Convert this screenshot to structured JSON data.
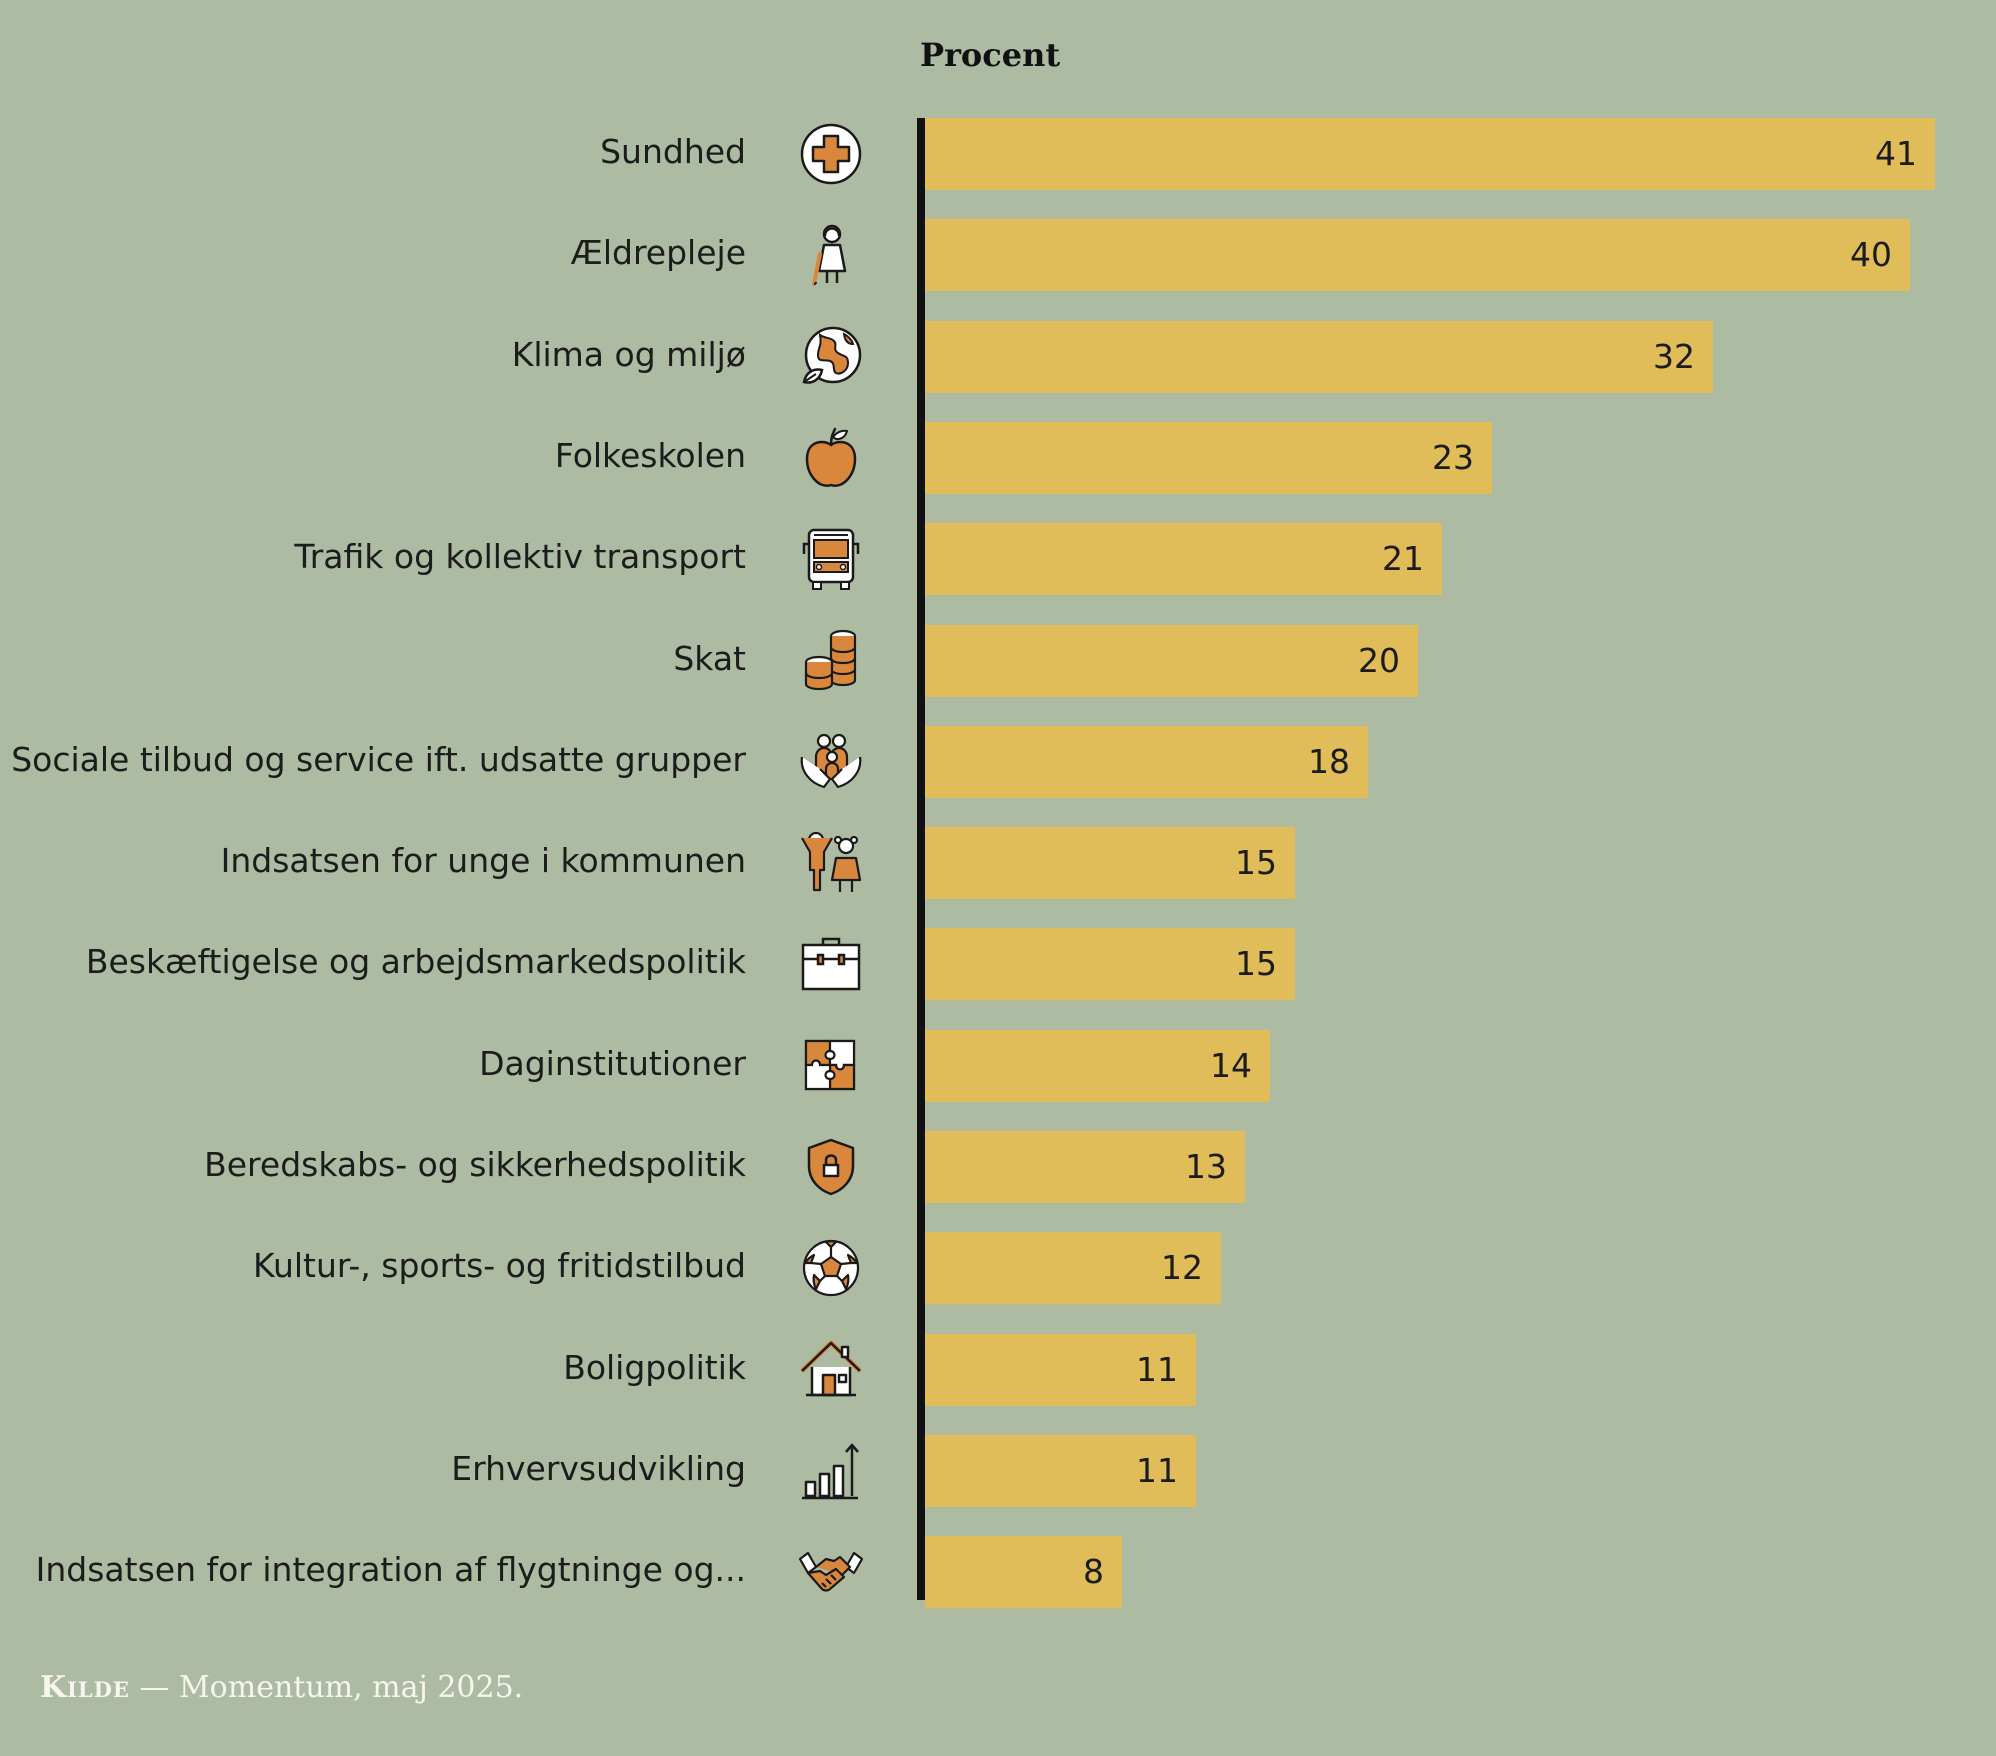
{
  "chart_data": {
    "type": "bar",
    "orientation": "horizontal",
    "axis_title": "Procent",
    "xlim": [
      0,
      41
    ],
    "categories": [
      "Sundhed",
      "Ældrepleje",
      "Klima og miljø",
      "Folkeskolen",
      "Trafik og kollektiv transport",
      "Skat",
      "Sociale tilbud og service ift. udsatte grupper",
      "Indsatsen for unge i kommunen",
      "Beskæftigelse og arbejdsmarkedspolitik",
      "Daginstitutioner",
      "Beredskabs- og sikkerhedspolitik",
      "Kultur-, sports- og fritidstilbud",
      "Boligpolitik",
      "Erhvervsudvikling",
      "Indsatsen for integration af flygtninge og..."
    ],
    "values": [
      41,
      40,
      32,
      23,
      21,
      20,
      18,
      15,
      15,
      14,
      13,
      12,
      11,
      11,
      8
    ],
    "value_labels": [
      "41",
      "40",
      "32",
      "23",
      "21",
      "20",
      "18",
      "15",
      "15",
      "14",
      "13",
      "12",
      "11",
      "11",
      "8"
    ],
    "icons": [
      "medical-cross-icon",
      "elderly-person-icon",
      "globe-leaf-icon",
      "apple-icon",
      "bus-icon",
      "coins-icon",
      "caring-hands-icon",
      "children-icon",
      "briefcase-icon",
      "puzzle-icon",
      "shield-lock-icon",
      "football-icon",
      "house-icon",
      "growth-chart-icon",
      "handshake-icon"
    ],
    "colors": {
      "bar": "#e0bd58",
      "icon_fill": "#d9873c",
      "background": "#adbba2",
      "axis": "#111111"
    }
  },
  "footer": {
    "source_label": "Kilde",
    "source_text": " — Momentum, maj 2025."
  }
}
